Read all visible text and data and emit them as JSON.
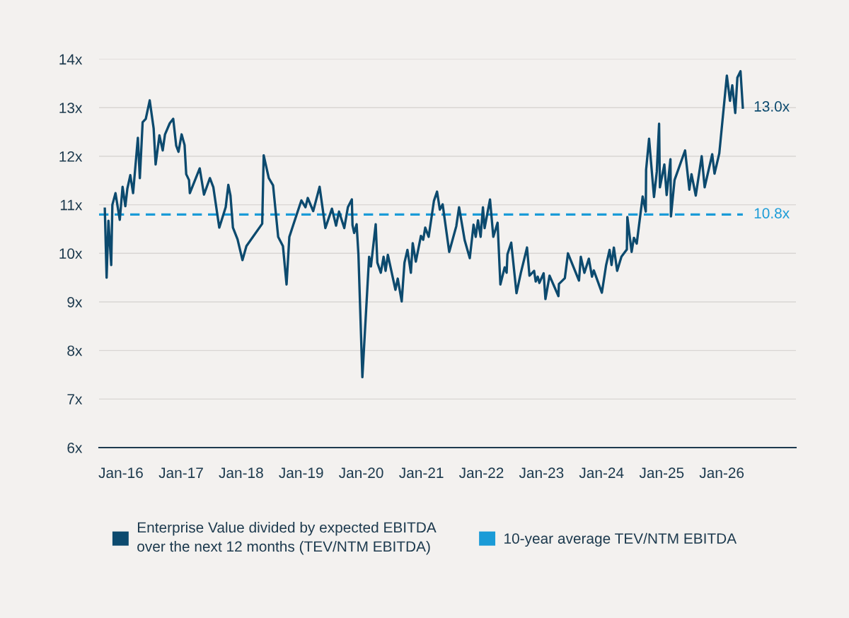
{
  "chart_data": {
    "type": "line",
    "xlim": [
      "2015-08-21",
      "2027-03-28"
    ],
    "ylim": [
      6,
      14
    ],
    "xticks": [
      {
        "value": "2016-01-01",
        "label": "Jan-16"
      },
      {
        "value": "2017-01-01",
        "label": "Jan-17"
      },
      {
        "value": "2018-01-01",
        "label": "Jan-18"
      },
      {
        "value": "2019-01-01",
        "label": "Jan-19"
      },
      {
        "value": "2020-01-01",
        "label": "Jan-20"
      },
      {
        "value": "2021-01-01",
        "label": "Jan-21"
      },
      {
        "value": "2022-01-01",
        "label": "Jan-22"
      },
      {
        "value": "2023-01-01",
        "label": "Jan-23"
      },
      {
        "value": "2024-01-01",
        "label": "Jan-24"
      },
      {
        "value": "2025-01-01",
        "label": "Jan-25"
      },
      {
        "value": "2026-01-01",
        "label": "Jan-26"
      }
    ],
    "yticks": [
      {
        "value": 6,
        "label": "6x"
      },
      {
        "value": 7,
        "label": "7x"
      },
      {
        "value": 8,
        "label": "8x"
      },
      {
        "value": 9,
        "label": "9x"
      },
      {
        "value": 10,
        "label": "10x"
      },
      {
        "value": 11,
        "label": "11x"
      },
      {
        "value": 12,
        "label": "12x"
      },
      {
        "value": 13,
        "label": "13x"
      },
      {
        "value": 14,
        "label": "14x"
      }
    ],
    "grid": "y",
    "legend": "bottom",
    "series": [
      {
        "name": "Enterprise Value divided by expected EBITDA over the next 12 months (TEV/NTM EBITDA)",
        "color": "#0c4a6e",
        "line_style": "solid",
        "x": [
          "2015-09-25",
          "2015-10-06",
          "2015-10-17",
          "2015-11-03",
          "2015-11-10",
          "2015-11-29",
          "2015-12-25",
          "2016-01-11",
          "2016-01-28",
          "2016-02-09",
          "2016-02-27",
          "2016-03-15",
          "2016-04-13",
          "2016-04-25",
          "2016-05-12",
          "2016-05-31",
          "2016-06-24",
          "2016-07-18",
          "2016-07-30",
          "2016-08-22",
          "2016-09-11",
          "2016-09-25",
          "2016-10-24",
          "2016-11-14",
          "2016-12-02",
          "2016-12-16",
          "2017-01-04",
          "2017-01-22",
          "2017-02-01",
          "2017-02-18",
          "2017-02-23",
          "2017-04-24",
          "2017-05-20",
          "2017-06-25",
          "2017-07-16",
          "2017-08-21",
          "2017-09-29",
          "2017-10-15",
          "2017-10-28",
          "2017-11-12",
          "2017-12-10",
          "2018-01-09",
          "2018-02-02",
          "2018-05-09",
          "2018-05-18",
          "2018-06-18",
          "2018-07-14",
          "2018-08-14",
          "2018-09-12",
          "2018-10-04",
          "2018-10-21",
          "2018-11-16",
          "2019-01-02",
          "2019-01-27",
          "2019-02-10",
          "2019-03-15",
          "2019-04-23",
          "2019-05-28",
          "2019-07-07",
          "2019-08-01",
          "2019-08-19",
          "2019-09-20",
          "2019-10-12",
          "2019-11-05",
          "2019-11-09",
          "2019-11-19",
          "2019-12-04",
          "2019-12-15",
          "2020-01-08",
          "2020-02-18",
          "2020-02-29",
          "2020-03-29",
          "2020-04-08",
          "2020-04-29",
          "2020-05-16",
          "2020-05-28",
          "2020-06-11",
          "2020-07-27",
          "2020-08-10",
          "2020-09-03",
          "2020-09-20",
          "2020-10-08",
          "2020-10-29",
          "2020-11-09",
          "2020-11-28",
          "2020-12-29",
          "2021-01-12",
          "2021-01-24",
          "2021-02-14",
          "2021-03-18",
          "2021-04-06",
          "2021-04-23",
          "2021-05-10",
          "2021-06-19",
          "2021-08-01",
          "2021-08-18",
          "2021-09-21",
          "2021-10-22",
          "2021-11-14",
          "2021-11-27",
          "2021-12-11",
          "2021-12-27",
          "2022-01-10",
          "2022-01-20",
          "2022-02-22",
          "2022-03-14",
          "2022-04-09",
          "2022-04-26",
          "2022-05-22",
          "2022-06-03",
          "2022-06-08",
          "2022-07-01",
          "2022-08-02",
          "2022-08-28",
          "2022-10-05",
          "2022-10-20",
          "2022-11-17",
          "2022-11-27",
          "2022-12-09",
          "2022-12-19",
          "2023-01-14",
          "2023-01-25",
          "2023-02-19",
          "2023-04-14",
          "2023-04-17",
          "2023-05-23",
          "2023-06-11",
          "2023-08-17",
          "2023-08-28",
          "2023-09-19",
          "2023-10-16",
          "2023-11-04",
          "2023-11-15",
          "2024-01-03",
          "2024-01-29",
          "2024-02-19",
          "2024-03-02",
          "2024-03-16",
          "2024-04-05",
          "2024-05-01",
          "2024-06-03",
          "2024-06-06",
          "2024-07-02",
          "2024-07-16",
          "2024-08-02",
          "2024-09-07",
          "2024-09-26",
          "2024-09-28",
          "2024-10-16",
          "2024-11-15",
          "2024-12-02",
          "2024-12-16",
          "2024-12-21",
          "2025-01-17",
          "2025-01-31",
          "2025-02-23",
          "2025-02-26",
          "2025-03-20",
          "2025-05-23",
          "2025-06-18",
          "2025-07-01",
          "2025-07-27",
          "2025-09-01",
          "2025-09-19",
          "2025-11-04",
          "2025-11-18",
          "2025-12-17",
          "2026-02-01",
          "2026-02-20",
          "2026-03-06",
          "2026-03-24",
          "2026-04-06",
          "2026-04-25",
          "2026-05-09"
        ],
        "values": [
          10.92,
          9.5,
          10.67,
          9.76,
          11.0,
          11.24,
          10.69,
          11.37,
          10.97,
          11.33,
          11.61,
          11.24,
          12.38,
          11.55,
          12.7,
          12.77,
          13.15,
          12.57,
          11.83,
          12.43,
          12.12,
          12.45,
          12.68,
          12.77,
          12.22,
          12.09,
          12.45,
          12.23,
          11.63,
          11.51,
          11.24,
          11.75,
          11.21,
          11.55,
          11.36,
          10.53,
          10.95,
          11.41,
          11.19,
          10.53,
          10.29,
          9.86,
          10.15,
          10.61,
          12.02,
          11.55,
          11.4,
          10.34,
          10.15,
          9.36,
          10.34,
          10.61,
          11.09,
          10.95,
          11.14,
          10.87,
          11.37,
          10.52,
          10.92,
          10.57,
          10.86,
          10.52,
          10.95,
          11.11,
          10.58,
          10.42,
          10.6,
          9.98,
          7.45,
          9.93,
          9.73,
          10.6,
          9.81,
          9.6,
          9.93,
          9.64,
          9.97,
          9.25,
          9.48,
          9.01,
          9.81,
          10.07,
          9.6,
          10.21,
          9.83,
          10.36,
          10.28,
          10.53,
          10.34,
          11.08,
          11.27,
          10.9,
          11.01,
          10.03,
          10.56,
          10.95,
          10.27,
          9.9,
          10.59,
          10.34,
          10.68,
          10.34,
          10.95,
          10.52,
          11.11,
          10.34,
          10.63,
          9.36,
          9.71,
          9.6,
          9.98,
          10.22,
          9.18,
          9.59,
          10.12,
          9.54,
          9.64,
          9.42,
          9.52,
          9.39,
          9.59,
          9.06,
          9.54,
          9.12,
          9.37,
          9.49,
          10.0,
          9.44,
          9.93,
          9.6,
          9.89,
          9.52,
          9.65,
          9.19,
          9.76,
          10.07,
          9.76,
          10.12,
          9.64,
          9.93,
          10.08,
          10.75,
          10.03,
          10.32,
          10.2,
          11.17,
          10.86,
          11.72,
          12.36,
          11.16,
          11.68,
          12.67,
          11.36,
          11.83,
          11.2,
          11.94,
          10.76,
          11.51,
          12.12,
          11.31,
          11.63,
          11.19,
          12.0,
          11.36,
          12.04,
          11.64,
          12.06,
          13.66,
          13.14,
          13.46,
          12.89,
          13.62,
          13.75,
          13.0
        ]
      },
      {
        "name": "10-year average TEV/NTM EBITDA",
        "color": "#1a9bd7",
        "line_style": "dashed",
        "x": [
          "2015-08-21",
          "2026-05-09"
        ],
        "values": [
          10.8,
          10.8
        ]
      }
    ],
    "annotations": [
      {
        "text": "13.0x",
        "x": "2026-05-09",
        "y": 13.0
      },
      {
        "text": "10.8x",
        "x": "2026-05-09",
        "y": 10.8
      }
    ]
  }
}
